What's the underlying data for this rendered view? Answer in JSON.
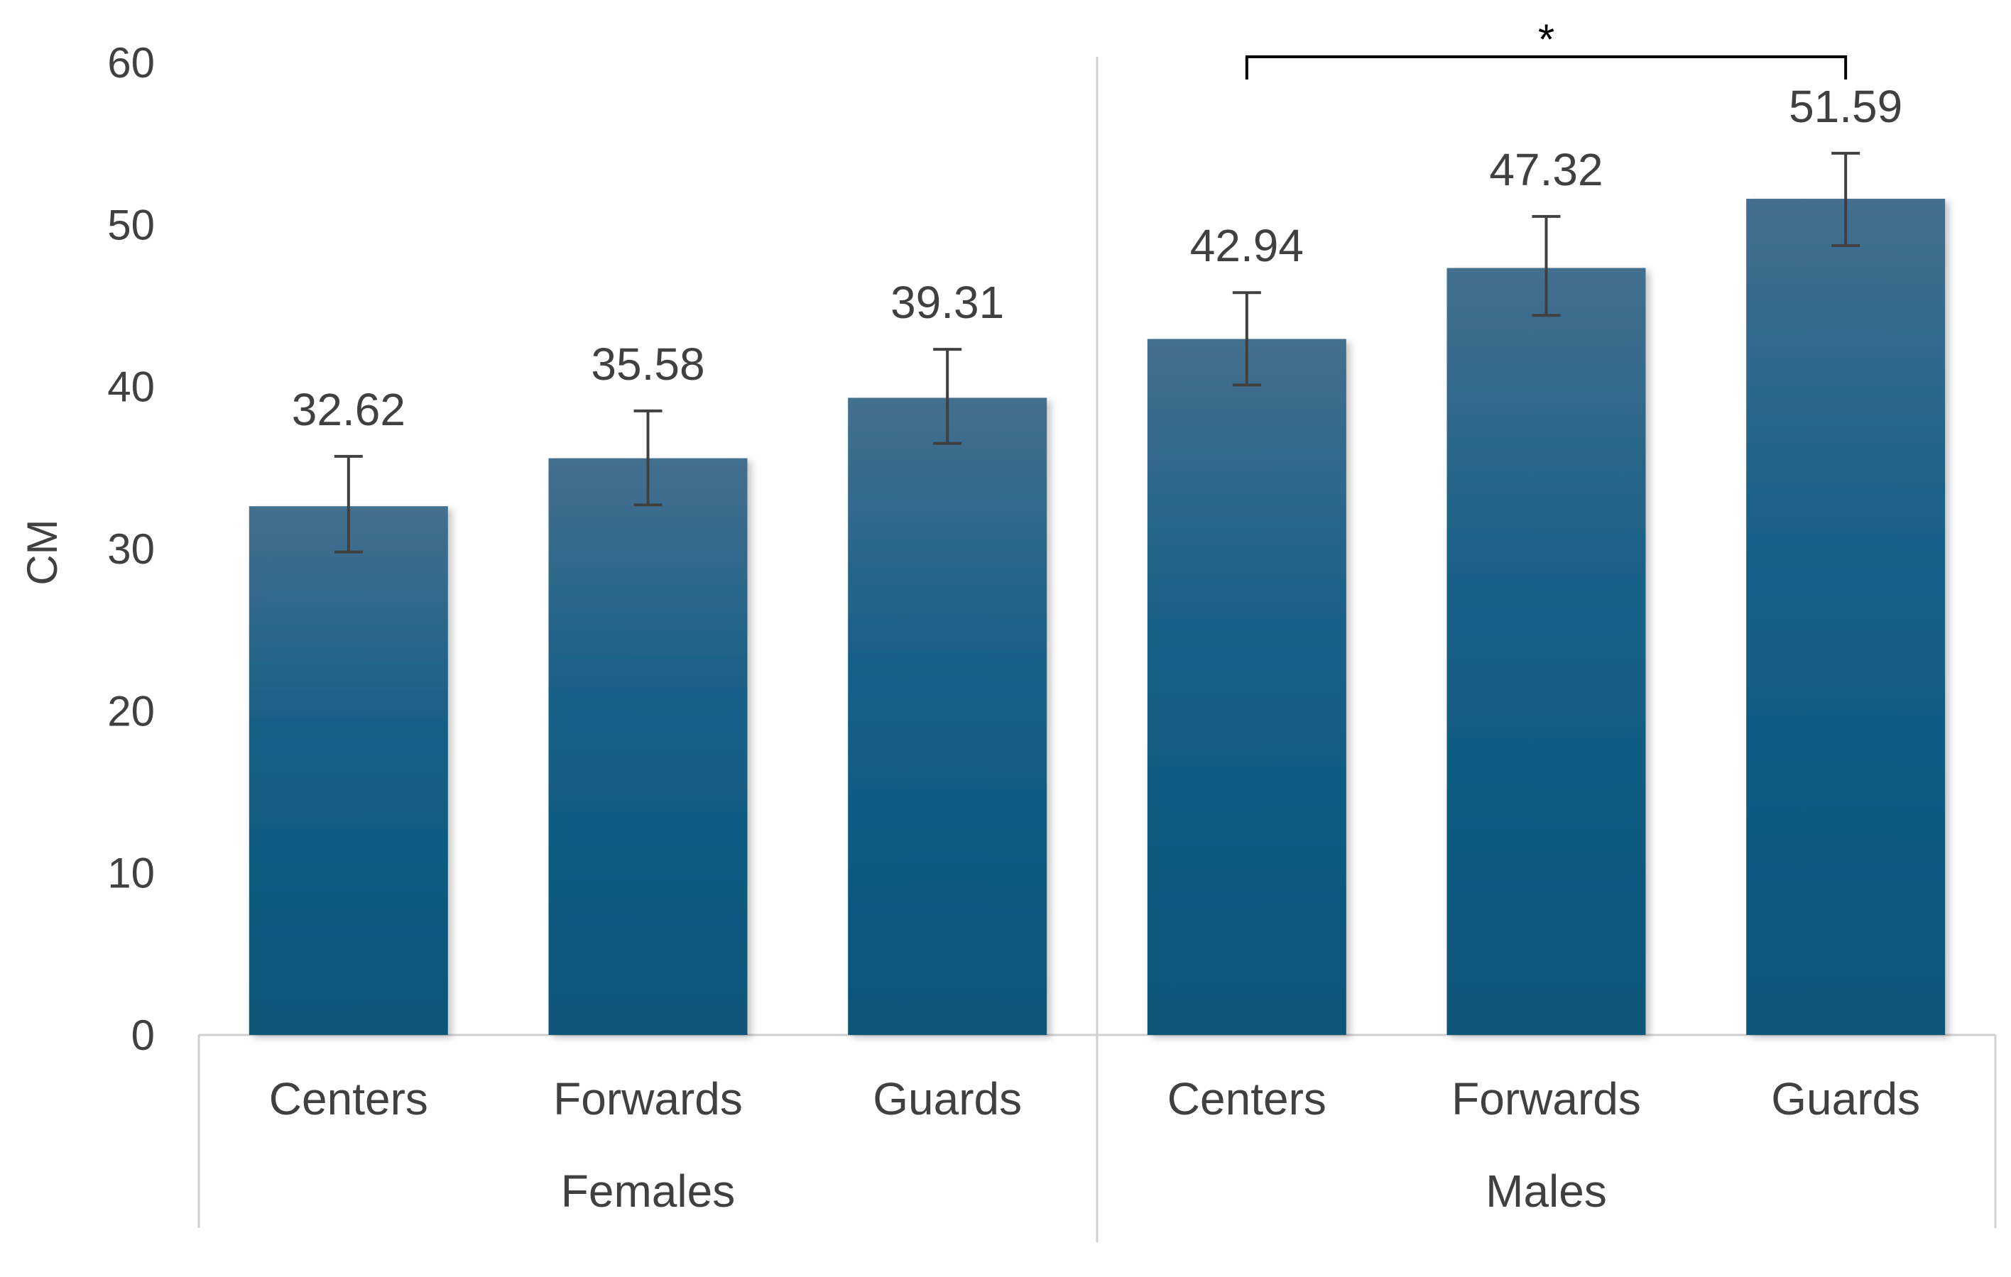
{
  "chart_data": {
    "type": "bar",
    "ylabel": "CM",
    "ylim": [
      0,
      60
    ],
    "yticks": [
      0,
      10,
      20,
      30,
      40,
      50,
      60
    ],
    "grid": false,
    "legend": "none",
    "groups": [
      {
        "label": "Females",
        "categories": [
          "Centers",
          "Forwards",
          "Guards"
        ]
      },
      {
        "label": "Males",
        "categories": [
          "Centers",
          "Forwards",
          "Guards"
        ]
      }
    ],
    "series": [
      {
        "values": [
          32.62,
          35.58,
          39.31,
          42.94,
          47.32,
          51.59
        ],
        "error_low": [
          29.8,
          32.7,
          36.5,
          40.1,
          44.4,
          48.7
        ],
        "error_high": [
          35.7,
          38.5,
          42.3,
          45.8,
          50.5,
          54.4
        ],
        "labels": [
          "32.62",
          "35.58",
          "39.31",
          "42.94",
          "47.32",
          "51.59"
        ]
      }
    ],
    "significance": [
      {
        "from_index": 3,
        "to_index": 5,
        "label": "*"
      }
    ]
  },
  "colors": {
    "bar_top": "#446f8f",
    "bar_bottom": "#0b5679",
    "error_bar": "#404040",
    "axis": "#d0d0d0",
    "text": "#404040",
    "bracket": "#000000"
  }
}
